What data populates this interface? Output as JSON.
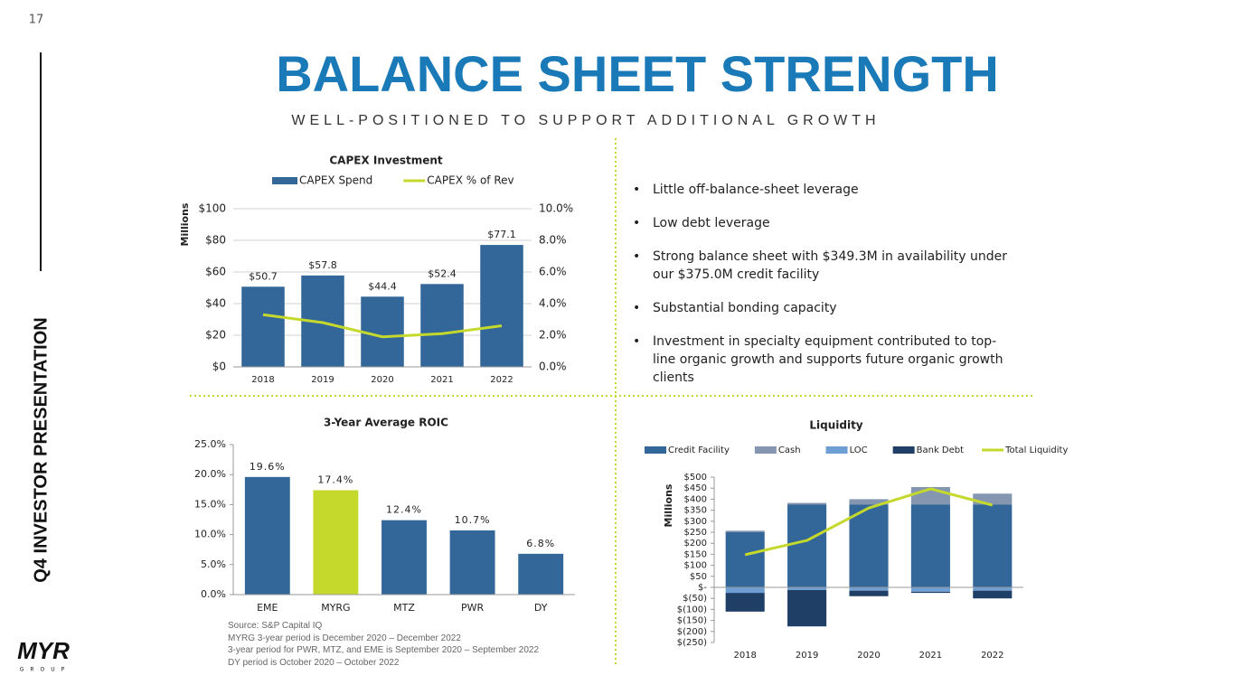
{
  "slide": {
    "page_number": "17",
    "title": "BALANCE SHEET STRENGTH",
    "subtitle": "WELL-POSITIONED TO SUPPORT ADDITIONAL GROWTH",
    "side_label": "Q4 INVESTOR PRESENTATION",
    "logo": "MYR",
    "logo_sub": "GROUP",
    "bullets": [
      "Little off-balance-sheet leverage",
      "Low debt leverage",
      "Strong balance sheet with $349.3M in availability under our $375.0M credit facility",
      "Substantial bonding capacity",
      "Investment in specialty equipment contributed to top-line organic growth and supports future organic growth clients"
    ],
    "source_notes": [
      "Source: S&P Capital IQ",
      "MYRG 3-year period is December 2020 – December 2022",
      "3-year period for PWR, MTZ, and EME is September 2020 – September 2022",
      "DY period is October 2020 – October 2022"
    ]
  },
  "chart_data": [
    {
      "type": "bar",
      "title": "CAPEX Investment",
      "y_label": "Millions",
      "grid": true,
      "categories": [
        "2018",
        "2019",
        "2020",
        "2021",
        "2022"
      ],
      "series": [
        {
          "name": "CAPEX Spend",
          "color": "#336699",
          "values": [
            50.7,
            57.8,
            44.4,
            52.4,
            77.1
          ],
          "value_labels": [
            "$50.7",
            "$57.8",
            "$44.4",
            "$52.4",
            "$77.1"
          ]
        },
        {
          "name": "CAPEX % of Rev",
          "type": "line",
          "axis": "y2",
          "color": "#c5d92d",
          "values": [
            3.3,
            2.8,
            1.9,
            2.1,
            2.6
          ]
        }
      ],
      "ylim": [
        0,
        100
      ],
      "yticks": [
        {
          "value": 0,
          "label": "$0"
        },
        {
          "value": 20,
          "label": "$20"
        },
        {
          "value": 40,
          "label": "$40"
        },
        {
          "value": 60,
          "label": "$60"
        },
        {
          "value": 80,
          "label": "$80"
        },
        {
          "value": 100,
          "label": "$100"
        }
      ],
      "y2lim": [
        0,
        10
      ],
      "y2ticks": [
        {
          "value": 0,
          "label": "0.0%"
        },
        {
          "value": 2,
          "label": "2.0%"
        },
        {
          "value": 4,
          "label": "4.0%"
        },
        {
          "value": 6,
          "label": "6.0%"
        },
        {
          "value": 8,
          "label": "8.0%"
        },
        {
          "value": 10,
          "label": "10.0%"
        }
      ]
    },
    {
      "type": "bar",
      "title": "3-Year Average ROIC",
      "grid": false,
      "categories": [
        "EME",
        "MYRG",
        "MTZ",
        "PWR",
        "DY"
      ],
      "values": [
        19.6,
        17.4,
        12.4,
        10.7,
        6.8
      ],
      "value_labels": [
        "19.6%",
        "17.4%",
        "12.4%",
        "10.7%",
        "6.8%"
      ],
      "colors": [
        "#336699",
        "#c5d92d",
        "#336699",
        "#336699",
        "#336699"
      ],
      "ylim": [
        0,
        25
      ],
      "yticks": [
        {
          "value": 0,
          "label": "0.0%"
        },
        {
          "value": 5,
          "label": "5.0%"
        },
        {
          "value": 10,
          "label": "10.0%"
        },
        {
          "value": 15,
          "label": "15.0%"
        },
        {
          "value": 20,
          "label": "20.0%"
        },
        {
          "value": 25,
          "label": "25.0%"
        }
      ]
    },
    {
      "type": "stacked_bar",
      "title": "Liquidity",
      "y_label": "Millions",
      "grid": false,
      "categories": [
        "2018",
        "2019",
        "2020",
        "2021",
        "2022"
      ],
      "series": [
        {
          "name": "Credit Facility",
          "color": "#336699",
          "values": [
            250,
            375,
            375,
            375,
            375
          ]
        },
        {
          "name": "Cash",
          "color": "#8496b0",
          "values": [
            7,
            8,
            25,
            80,
            50
          ]
        },
        {
          "name": "LOC",
          "color": "#6d9fd4",
          "values": [
            -25,
            -12,
            -15,
            -20,
            -15
          ]
        },
        {
          "name": "Bank Debt",
          "color": "#1f3f66",
          "values": [
            -85,
            -165,
            -25,
            -5,
            -35
          ]
        },
        {
          "name": "Total Liquidity",
          "type": "line",
          "color": "#c5d92d",
          "values": [
            148,
            213,
            360,
            447,
            373
          ]
        }
      ],
      "ylim": [
        -250,
        500
      ],
      "yticks": [
        {
          "value": -250,
          "label": "$(250)"
        },
        {
          "value": -200,
          "label": "$(200)"
        },
        {
          "value": -150,
          "label": "$(150)"
        },
        {
          "value": -100,
          "label": "$(100)"
        },
        {
          "value": -50,
          "label": "$(50)"
        },
        {
          "value": 0,
          "label": "$-"
        },
        {
          "value": 50,
          "label": "$50"
        },
        {
          "value": 100,
          "label": "$100"
        },
        {
          "value": 150,
          "label": "$150"
        },
        {
          "value": 200,
          "label": "$200"
        },
        {
          "value": 250,
          "label": "$250"
        },
        {
          "value": 300,
          "label": "$300"
        },
        {
          "value": 350,
          "label": "$350"
        },
        {
          "value": 400,
          "label": "$400"
        },
        {
          "value": 450,
          "label": "$450"
        },
        {
          "value": 500,
          "label": "$500"
        }
      ]
    }
  ]
}
